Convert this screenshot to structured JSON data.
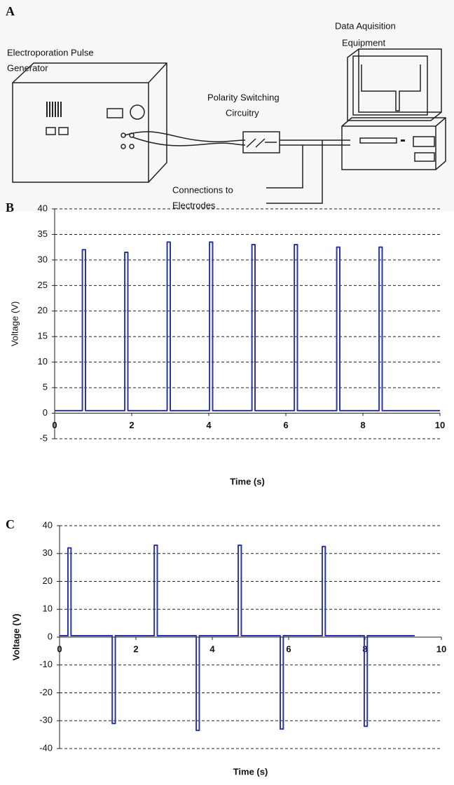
{
  "diagram": {
    "label": "A",
    "generator": [
      "Electroporation Pulse",
      "Generator"
    ],
    "switching": [
      "Polarity Switching",
      "Circuitry"
    ],
    "acquisition": [
      "Data Aquisition",
      "Equipment"
    ],
    "connections": [
      "Connections to",
      "Electrodes"
    ]
  },
  "chart_data": [
    {
      "type": "line",
      "panel": "B",
      "x_label": "Time (s)",
      "y_label": "Voltage (V)",
      "xlim": [
        0,
        10
      ],
      "ylim": [
        -5,
        40
      ],
      "xticks": [
        0,
        2,
        4,
        6,
        8,
        10
      ],
      "yticks": [
        -5,
        0,
        5,
        10,
        15,
        20,
        25,
        30,
        35,
        40
      ],
      "grid": true,
      "x": [
        0,
        0.72,
        0.72,
        0.8,
        0.8,
        1.82,
        1.82,
        1.9,
        1.9,
        2.92,
        2.92,
        3,
        3,
        4.02,
        4.02,
        4.1,
        4.1,
        5.12,
        5.12,
        5.2,
        5.2,
        6.22,
        6.22,
        6.3,
        6.3,
        7.32,
        7.32,
        7.4,
        7.4,
        8.42,
        8.42,
        8.5,
        8.5,
        10
      ],
      "series": [
        {
          "color": "#2b36a6",
          "values": [
            0.5,
            0.5,
            32,
            32,
            0.5,
            0.5,
            31.5,
            31.5,
            0.5,
            0.5,
            33.5,
            33.5,
            0.5,
            0.5,
            33.5,
            33.5,
            0.5,
            0.5,
            33,
            33,
            0.5,
            0.5,
            33,
            33,
            0.5,
            0.5,
            32.5,
            32.5,
            0.5,
            0.5,
            32.5,
            32.5,
            0.5,
            0.5
          ]
        }
      ]
    },
    {
      "type": "line",
      "panel": "C",
      "x_label": "Time (s)",
      "y_label": "Voltage (V)",
      "xlim": [
        0,
        10
      ],
      "ylim": [
        -40,
        40
      ],
      "xticks": [
        0,
        2,
        4,
        6,
        8,
        10
      ],
      "yticks": [
        -40,
        -30,
        -20,
        -10,
        0,
        10,
        20,
        30,
        40
      ],
      "grid": true,
      "x": [
        0,
        0.22,
        0.22,
        0.3,
        0.3,
        1.38,
        1.38,
        1.46,
        1.46,
        2.48,
        2.48,
        2.56,
        2.56,
        3.58,
        3.58,
        3.66,
        3.66,
        4.68,
        4.68,
        4.76,
        4.76,
        5.78,
        5.78,
        5.86,
        5.86,
        6.88,
        6.88,
        6.96,
        6.96,
        7.98,
        7.98,
        8.06,
        8.06,
        9.3
      ],
      "series": [
        {
          "color": "#2b36a6",
          "values": [
            0.5,
            0.5,
            32,
            32,
            0.5,
            0.5,
            -31,
            -31,
            0.5,
            0.5,
            33,
            33,
            0.5,
            0.5,
            -33.5,
            -33.5,
            0.5,
            0.5,
            33,
            33,
            0.5,
            0.5,
            -33,
            -33,
            0.5,
            0.5,
            32.5,
            32.5,
            0.5,
            0.5,
            -32,
            -32,
            0.5,
            0.5
          ]
        }
      ]
    }
  ]
}
